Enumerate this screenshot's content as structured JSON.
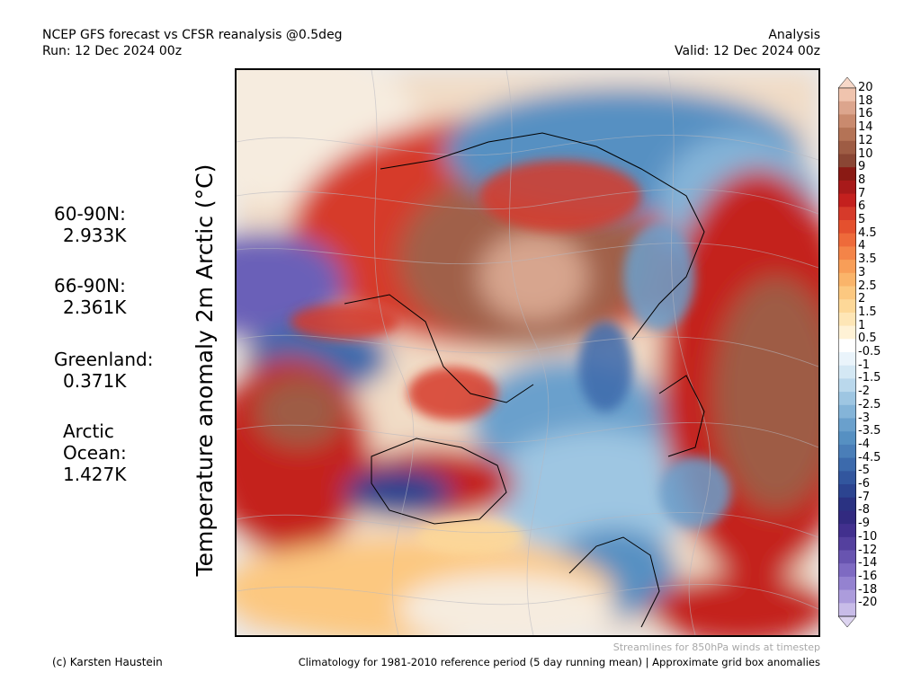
{
  "header": {
    "left_line1": "NCEP GFS forecast vs CFSR reanalysis @0.5deg",
    "left_line2": "Run: 12 Dec 2024 00z",
    "right_line1": "Analysis",
    "right_line2": "Valid: 12 Dec 2024 00z"
  },
  "map": {
    "ylabel": "Temperature anomaly 2m Arctic (°C)"
  },
  "stats": [
    {
      "label": "60-90N:",
      "value": "2.933K"
    },
    {
      "label": "66-90N:",
      "value": "2.361K"
    },
    {
      "label": "Greenland:",
      "value": "0.371K"
    },
    {
      "label_line1": "Arctic",
      "label_line2": "Ocean:",
      "value": "1.427K"
    }
  ],
  "colorbar": {
    "labels": [
      "20",
      "18",
      "16",
      "14",
      "12",
      "10",
      "9",
      "8",
      "7",
      "6",
      "5",
      "4.5",
      "4",
      "3.5",
      "3",
      "2.5",
      "2",
      "1.5",
      "1",
      "0.5",
      "-0.5",
      "-1",
      "-1.5",
      "-2",
      "-2.5",
      "-3",
      "-3.5",
      "-4",
      "-4.5",
      "-5",
      "-6",
      "-7",
      "-8",
      "-9",
      "-10",
      "-12",
      "-14",
      "-16",
      "-18",
      "-20"
    ],
    "colors": [
      "#f0c4ae",
      "#dca58d",
      "#c98a6e",
      "#b47356",
      "#9e5c44",
      "#8a4634",
      "#8a1a14",
      "#a81a1a",
      "#c4201e",
      "#d63a2a",
      "#e4502e",
      "#ee6a3a",
      "#f48448",
      "#f89e58",
      "#fab46a",
      "#fcc880",
      "#fdd898",
      "#fee6b6",
      "#fff2d6",
      "#ffffff",
      "#eaf4fb",
      "#d4e8f4",
      "#bad8ec",
      "#9ec6e2",
      "#84b4d8",
      "#6aa0cc",
      "#5690c2",
      "#4a7eb8",
      "#3c6aac",
      "#32569e",
      "#2c4490",
      "#2a3282",
      "#322a80",
      "#42308e",
      "#54409e",
      "#6854b0",
      "#7e6ac2",
      "#9482d0",
      "#ac9cdc",
      "#c8bce8"
    ],
    "top_color": "#f7d8c8",
    "bottom_color": "#ddd4f0"
  },
  "footer": {
    "stream_note": "Streamlines for 850hPa winds at timestep",
    "credit": "(c) Karsten Haustein",
    "climatology": "Climatology for 1981-2010 reference period (5 day running mean) | Approximate grid box anomalies"
  }
}
